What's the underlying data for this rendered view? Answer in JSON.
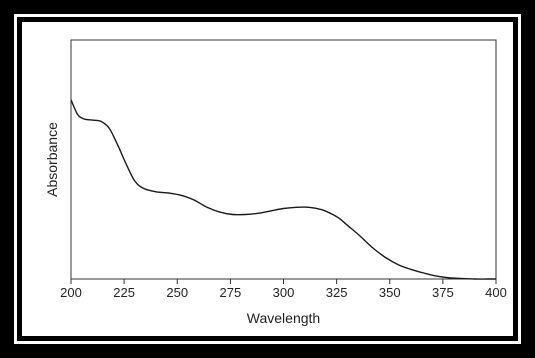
{
  "chart_data": {
    "type": "line",
    "title": "",
    "xlabel": "Wavelength",
    "ylabel": "Absorbance",
    "xlim": [
      200,
      400
    ],
    "ylim": [
      0,
      1
    ],
    "x_ticks": [
      200,
      225,
      250,
      275,
      300,
      325,
      350,
      375,
      400
    ],
    "y_ticks": [],
    "grid": false,
    "legend": "none",
    "line_color": "#1a1a1a",
    "series": [
      {
        "x": [
          200,
          203,
          206,
          210,
          214,
          218,
          222,
          226,
          230,
          234,
          240,
          246,
          252,
          258,
          264,
          270,
          276,
          282,
          288,
          294,
          300,
          306,
          312,
          318,
          322,
          326,
          330,
          336,
          342,
          348,
          354,
          360,
          366,
          372,
          378,
          384,
          390,
          396,
          400
        ],
        "y": [
          0.75,
          0.69,
          0.67,
          0.665,
          0.66,
          0.63,
          0.56,
          0.48,
          0.41,
          0.38,
          0.365,
          0.36,
          0.35,
          0.33,
          0.3,
          0.28,
          0.27,
          0.27,
          0.275,
          0.285,
          0.295,
          0.3,
          0.3,
          0.29,
          0.275,
          0.255,
          0.225,
          0.18,
          0.13,
          0.09,
          0.06,
          0.04,
          0.025,
          0.012,
          0.005,
          0.002,
          0.0,
          0.0,
          0.0
        ]
      }
    ]
  }
}
